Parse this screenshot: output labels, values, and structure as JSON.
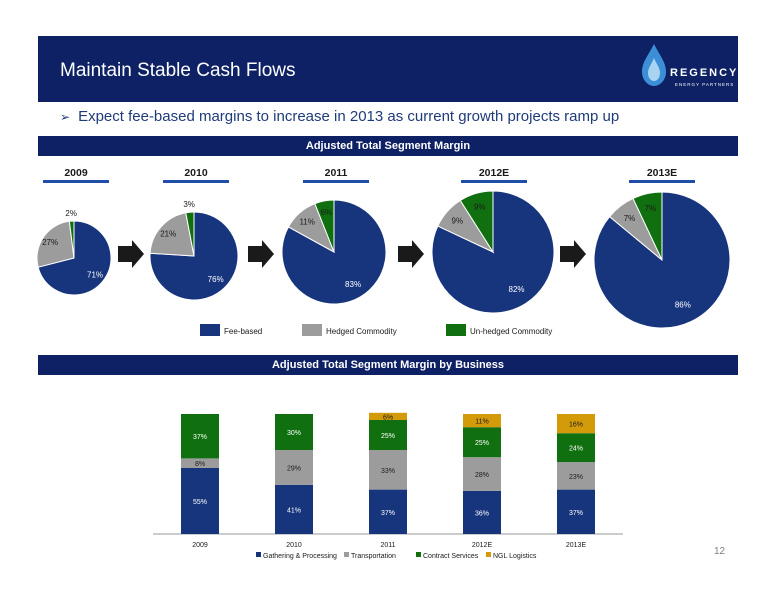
{
  "header": {
    "title": "Maintain Stable Cash Flows"
  },
  "logo": {
    "name": "REGENCY",
    "tagline": "ENERGY PARTNERS"
  },
  "bullet": "Expect fee-based margins to increase in 2013 as current growth projects ramp up",
  "section1": {
    "title": "Adjusted Total Segment Margin"
  },
  "section2": {
    "title": "Adjusted Total Segment Margin by Business"
  },
  "colors": {
    "navy": "#0e2164",
    "fee_based": "#17357d",
    "hedged": "#9c9c9c",
    "unhedged": "#107010",
    "ngl": "#d39a0a"
  },
  "pie_legend": [
    "Fee-based",
    "Hedged Commodity",
    "Un-hedged Commodity"
  ],
  "chart_data": [
    {
      "type": "pie",
      "title": "Adjusted Total Segment Margin",
      "categories": [
        "2009",
        "2010",
        "2011",
        "2012E",
        "2013E"
      ],
      "series": [
        {
          "name": "Fee-based",
          "values": [
            71,
            76,
            83,
            82,
            86
          ]
        },
        {
          "name": "Hedged Commodity",
          "values": [
            27,
            21,
            11,
            9,
            7
          ]
        },
        {
          "name": "Un-hedged Commodity",
          "values": [
            2,
            3,
            6,
            9,
            7
          ]
        }
      ]
    },
    {
      "type": "bar",
      "stacked": true,
      "title": "Adjusted Total Segment Margin by Business",
      "categories": [
        "2009",
        "2010",
        "2011",
        "2012E",
        "2013E"
      ],
      "series": [
        {
          "name": "Gathering & Processing",
          "values": [
            55,
            41,
            37,
            36,
            37
          ]
        },
        {
          "name": "Transportation",
          "values": [
            8,
            29,
            33,
            28,
            23
          ]
        },
        {
          "name": "Contract Services",
          "values": [
            37,
            30,
            25,
            25,
            24
          ]
        },
        {
          "name": "NGL Logistics",
          "values": [
            null,
            null,
            6,
            11,
            16
          ]
        }
      ],
      "legend": "bottom"
    }
  ],
  "page_number": "12"
}
